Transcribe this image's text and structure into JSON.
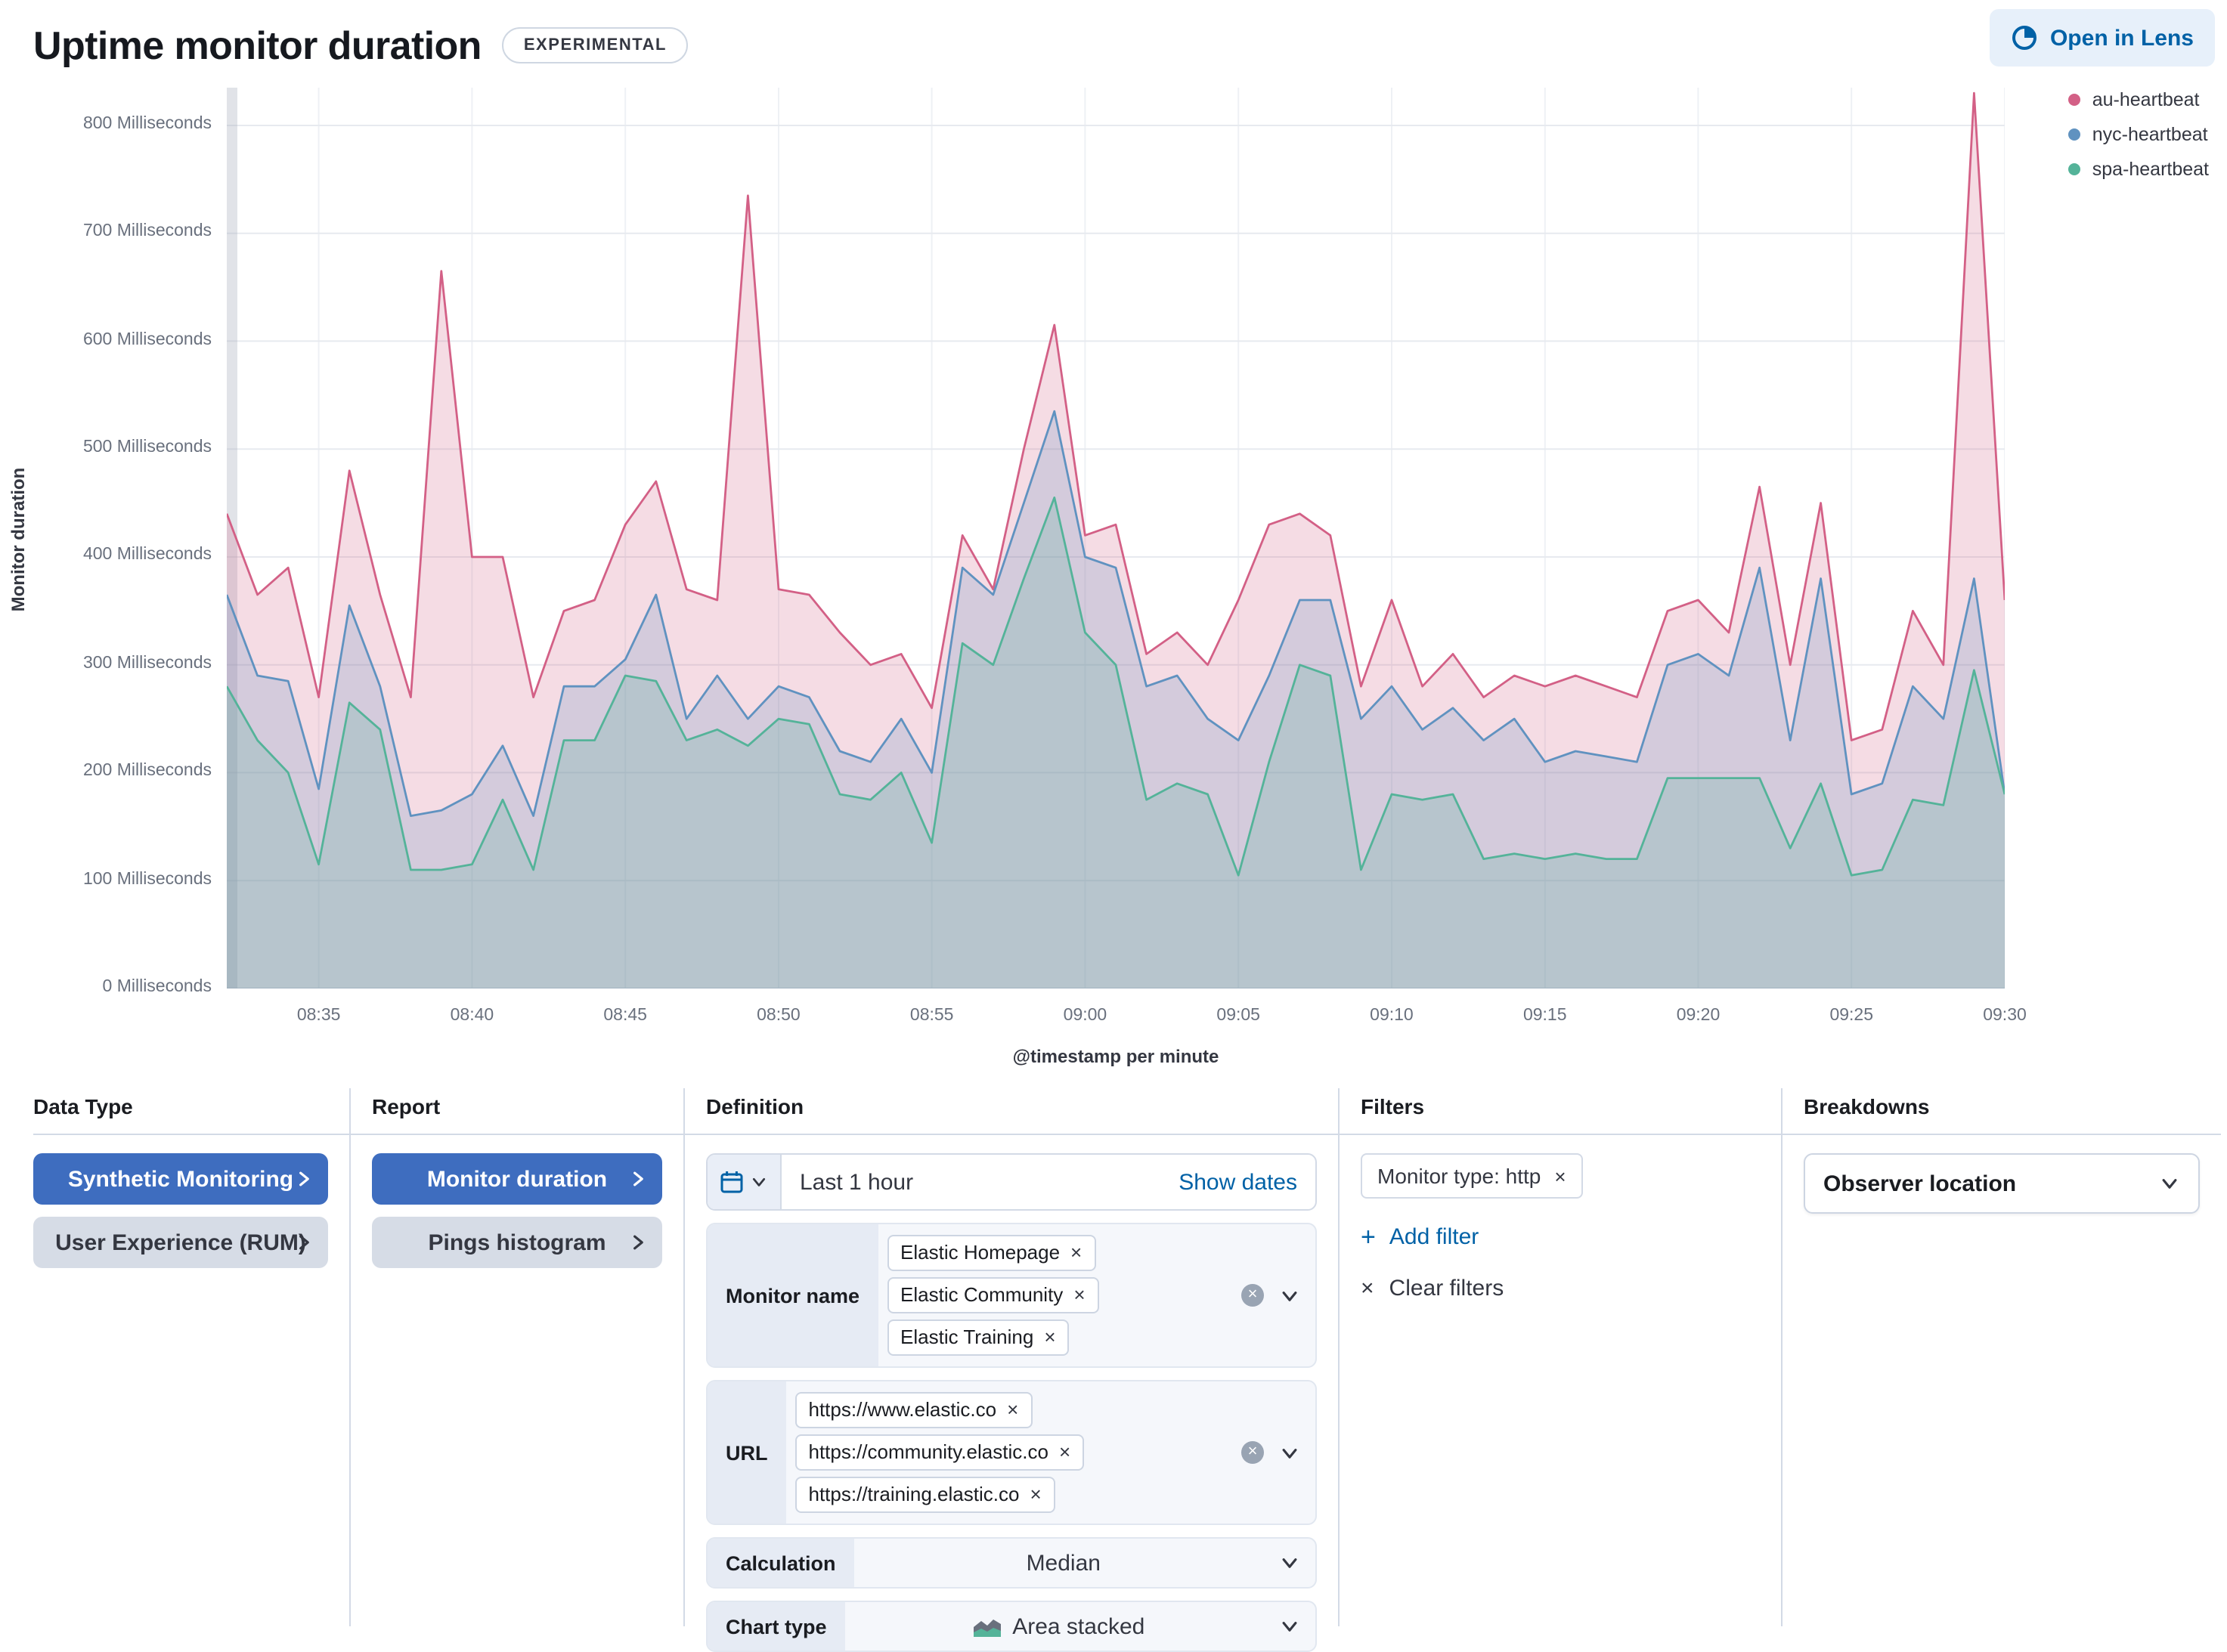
{
  "header": {
    "title": "Uptime monitor duration",
    "badge": "EXPERIMENTAL",
    "open_in_lens": "Open in Lens"
  },
  "icons": {
    "close_glyph": "×",
    "plus_glyph": "+",
    "clear_glyph": "×"
  },
  "chart_data": {
    "type": "area",
    "title": "Uptime monitor duration",
    "xlabel": "@timestamp per minute",
    "ylabel": "Monitor duration",
    "x_start": "08:32",
    "x_interval_minutes": 1,
    "x_tick_labels": [
      "08:35",
      "08:40",
      "08:45",
      "08:50",
      "08:55",
      "09:00",
      "09:05",
      "09:10",
      "09:15",
      "09:20",
      "09:25",
      "09:30"
    ],
    "x_tick_indices": [
      3,
      8,
      13,
      18,
      23,
      28,
      33,
      38,
      43,
      48,
      53,
      58
    ],
    "y_ticks": [
      0,
      100,
      200,
      300,
      400,
      500,
      600,
      700,
      800
    ],
    "y_tick_suffix": " Milliseconds",
    "ylim": [
      0,
      835
    ],
    "grid": true,
    "legend_position": "top-right",
    "series": [
      {
        "name": "au-heartbeat",
        "color": "#D36086",
        "values": [
          440,
          365,
          390,
          270,
          480,
          365,
          270,
          665,
          400,
          400,
          270,
          350,
          360,
          430,
          470,
          370,
          360,
          735,
          370,
          365,
          330,
          300,
          310,
          260,
          420,
          370,
          500,
          615,
          420,
          430,
          310,
          330,
          300,
          360,
          430,
          440,
          420,
          280,
          360,
          280,
          310,
          270,
          290,
          280,
          290,
          280,
          270,
          350,
          360,
          330,
          465,
          300,
          450,
          230,
          240,
          350,
          300,
          830,
          360
        ]
      },
      {
        "name": "nyc-heartbeat",
        "color": "#6092C0",
        "values": [
          365,
          290,
          285,
          185,
          355,
          280,
          160,
          165,
          180,
          225,
          160,
          280,
          280,
          305,
          365,
          250,
          290,
          250,
          280,
          270,
          220,
          210,
          250,
          200,
          390,
          365,
          450,
          535,
          400,
          390,
          280,
          290,
          250,
          230,
          290,
          360,
          360,
          250,
          280,
          240,
          260,
          230,
          250,
          210,
          220,
          215,
          210,
          300,
          310,
          290,
          390,
          230,
          380,
          180,
          190,
          280,
          250,
          380,
          180
        ]
      },
      {
        "name": "spa-heartbeat",
        "color": "#54B399",
        "values": [
          280,
          230,
          200,
          115,
          265,
          240,
          110,
          110,
          115,
          175,
          110,
          230,
          230,
          290,
          285,
          230,
          240,
          225,
          250,
          245,
          180,
          175,
          200,
          135,
          320,
          300,
          380,
          455,
          330,
          300,
          175,
          190,
          180,
          105,
          210,
          300,
          290,
          110,
          180,
          175,
          180,
          120,
          125,
          120,
          125,
          120,
          120,
          195,
          195,
          195,
          195,
          130,
          190,
          105,
          110,
          175,
          170,
          295,
          180
        ]
      }
    ]
  },
  "panel": {
    "data_type": {
      "label": "Data Type",
      "buttons": [
        {
          "label": "Synthetic Monitoring",
          "selected": true
        },
        {
          "label": "User Experience (RUM)",
          "selected": false
        }
      ]
    },
    "report": {
      "label": "Report",
      "buttons": [
        {
          "label": "Monitor duration",
          "selected": true
        },
        {
          "label": "Pings histogram",
          "selected": false
        }
      ]
    },
    "definition": {
      "label": "Definition",
      "date_picker": {
        "value": "Last 1 hour",
        "show_dates_label": "Show dates"
      },
      "monitor_name": {
        "label": "Monitor name",
        "tags": [
          "Elastic Homepage",
          "Elastic Community",
          "Elastic Training"
        ]
      },
      "url": {
        "label": "URL",
        "tags": [
          "https://www.elastic.co",
          "https://community.elastic.co",
          "https://training.elastic.co"
        ]
      },
      "calculation": {
        "label": "Calculation",
        "value": "Median"
      },
      "chart_type": {
        "label": "Chart type",
        "value": "Area stacked"
      }
    },
    "filters": {
      "label": "Filters",
      "pills": [
        {
          "label": "Monitor type: http"
        }
      ],
      "add_filter_label": "Add filter",
      "clear_filters_label": "Clear filters"
    },
    "breakdowns": {
      "label": "Breakdowns",
      "selected": "Observer location"
    }
  }
}
